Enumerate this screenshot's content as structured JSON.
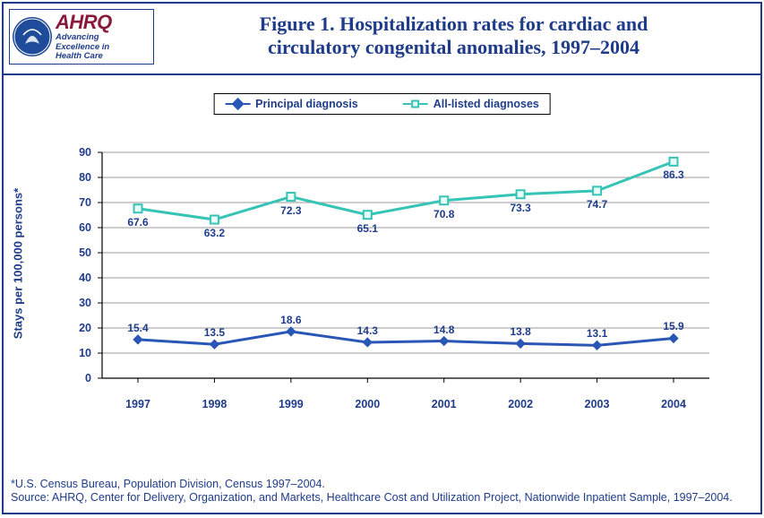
{
  "header": {
    "ahrq_word": "AHRQ",
    "ahrq_tag_line1": "Advancing",
    "ahrq_tag_line2": "Excellence in",
    "ahrq_tag_line3": "Health Care",
    "title_line1": "Figure 1. Hospitalization rates for cardiac and",
    "title_line2": "circulatory congenital anomalies, 1997–2004"
  },
  "chart": {
    "type": "line",
    "legend": {
      "series1_label": "Principal diagnosis",
      "series2_label": "All-listed diagnoses"
    },
    "y_axis": {
      "label": "Stays per 100,000 persons*",
      "min": 0,
      "max": 90,
      "step": 10,
      "ticks": [
        "0",
        "10",
        "20",
        "30",
        "40",
        "50",
        "60",
        "70",
        "80",
        "90"
      ]
    },
    "x_axis": {
      "categories": [
        "1997",
        "1998",
        "1999",
        "2000",
        "2001",
        "2002",
        "2003",
        "2004"
      ]
    },
    "series": {
      "principal": {
        "color": "#2a56b5",
        "line_width": 3,
        "marker": "diamond",
        "marker_size": 10,
        "values": [
          15.4,
          13.5,
          18.6,
          14.3,
          14.8,
          13.8,
          13.1,
          15.9
        ],
        "labels": [
          "15.4",
          "13.5",
          "18.6",
          "14.3",
          "14.8",
          "13.8",
          "13.1",
          "15.9"
        ]
      },
      "all_listed": {
        "color": "#35c4b5",
        "line_width": 3,
        "marker": "square",
        "marker_size": 9,
        "marker_fill": "#e8fbf7",
        "values": [
          67.6,
          63.2,
          72.3,
          65.1,
          70.8,
          73.3,
          74.7,
          86.3
        ],
        "labels": [
          "67.6",
          "63.2",
          "72.3",
          "65.1",
          "70.8",
          "73.3",
          "74.7",
          "86.3"
        ]
      }
    },
    "grid_color": "#7a7a7a",
    "axis_color": "#000000",
    "background": "#ffffff",
    "title_color": "#1f3c8a",
    "label_fontsize": 12,
    "title_fontsize": 22
  },
  "footnote": {
    "line1": "*U.S. Census Bureau, Population Division, Census 1997–2004.",
    "line2": "Source: AHRQ, Center for Delivery, Organization, and Markets, Healthcare Cost and Utilization Project, Nationwide Inpatient Sample, 1997–2004."
  }
}
